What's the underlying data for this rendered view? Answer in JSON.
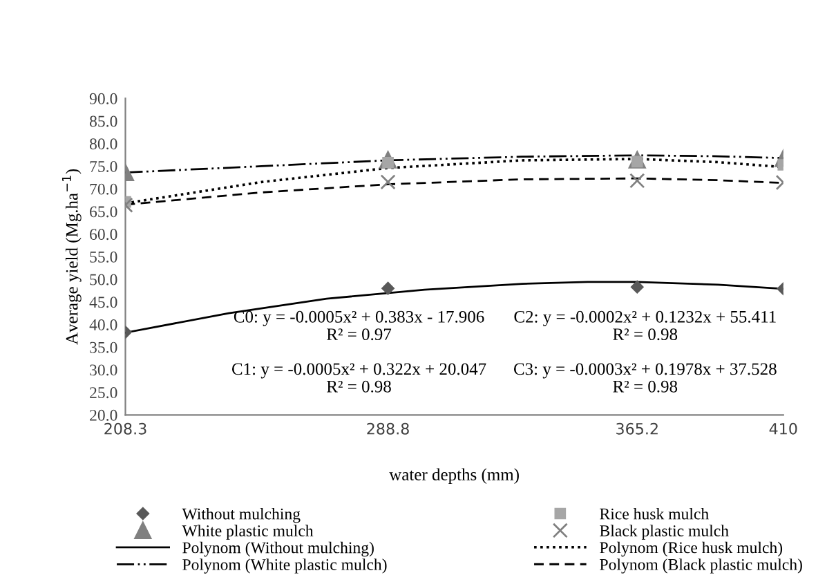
{
  "chart_data": {
    "type": "scatter",
    "xlabel": "water depths (mm)",
    "ylabel": "Average yield (Mg.ha$^{−1}$)",
    "xlim": [
      208.3,
      410
    ],
    "xticks": [
      208.3,
      288.8,
      365.2,
      410
    ],
    "ylim": [
      20,
      90
    ],
    "yticks": [
      {
        "value": 20,
        "label": "20.0"
      },
      {
        "value": 25,
        "label": "25.0"
      },
      {
        "value": 30,
        "label": "30.0"
      },
      {
        "value": 35,
        "label": "35.0"
      },
      {
        "value": 40,
        "label": "40.0"
      },
      {
        "value": 45,
        "label": "45.0"
      },
      {
        "value": 50,
        "label": "50.0"
      },
      {
        "value": 55,
        "label": "55.0"
      },
      {
        "value": 60,
        "label": "60.0"
      },
      {
        "value": 65,
        "label": "65.0"
      },
      {
        "value": 70,
        "label": "70.0"
      },
      {
        "value": 75,
        "label": "75.0"
      },
      {
        "value": 80,
        "label": "80.0"
      },
      {
        "value": 85,
        "label": "85.0"
      },
      {
        "value": 90,
        "label": "90.0"
      }
    ],
    "grid": false,
    "legend": "bottom",
    "x": [
      208.3,
      288.8,
      365.2,
      410
    ],
    "series": [
      {
        "name": "Without mulching",
        "marker": "diamond",
        "color": "#595959",
        "values": [
          38.3,
          48.0,
          48.3,
          47.9
        ]
      },
      {
        "name": "White plastic mulch",
        "marker": "triangle",
        "color": "#808080",
        "values": [
          73.6,
          76.4,
          76.4,
          76.7
        ]
      },
      {
        "name": "Rice husk mulch",
        "marker": "square",
        "color": "#a6a6a6",
        "values": [
          67.1,
          75.8,
          76.0,
          75.3
        ]
      },
      {
        "name": "Black plastic mulch",
        "marker": "cross",
        "color": "#808080",
        "values": [
          66.4,
          71.5,
          71.8,
          71.4
        ]
      },
      {
        "name": "Polynom (Without mulching)",
        "type": "line",
        "line_style": "solid",
        "color": "#000000",
        "x": [
          208.3,
          240,
          270,
          300,
          330,
          350,
          365,
          390,
          410
        ],
        "values": [
          38.2,
          42.5,
          45.7,
          47.7,
          49.0,
          49.4,
          49.4,
          48.8,
          47.9
        ]
      },
      {
        "name": "Polynom (White plastic mulch)",
        "type": "line",
        "line_style": "dashdotdot",
        "color": "#000000",
        "x": [
          208.3,
          250,
          288.8,
          330,
          365,
          390,
          410
        ],
        "values": [
          73.6,
          75.0,
          76.3,
          77.1,
          77.4,
          77.2,
          76.8
        ]
      },
      {
        "name": "Polynom (Rice husk mulch)",
        "type": "line",
        "line_style": "dotted",
        "color": "#000000",
        "x": [
          208.3,
          250,
          288.8,
          330,
          365,
          390,
          410
        ],
        "values": [
          66.8,
          71.5,
          74.6,
          76.3,
          76.6,
          75.9,
          74.8
        ]
      },
      {
        "name": "Polynom (Black plastic mulch)",
        "type": "line",
        "line_style": "dashed",
        "color": "#000000",
        "x": [
          208.3,
          250,
          288.8,
          330,
          365,
          390,
          410
        ],
        "values": [
          66.5,
          69.2,
          71.0,
          72.1,
          72.3,
          71.9,
          71.3
        ]
      }
    ],
    "annotations": [
      "C0: y = -0.0005x² + 0.383x - 17.906\nR² = 0.97",
      "C2: y = -0.0002x² + 0.1232x + 55.411\nR² = 0.98",
      "C1: y = -0.0005x² + 0.322x + 20.047\nR² = 0.98",
      "C3: y = -0.0003x² + 0.1978x + 37.528\nR² = 0.98"
    ]
  }
}
